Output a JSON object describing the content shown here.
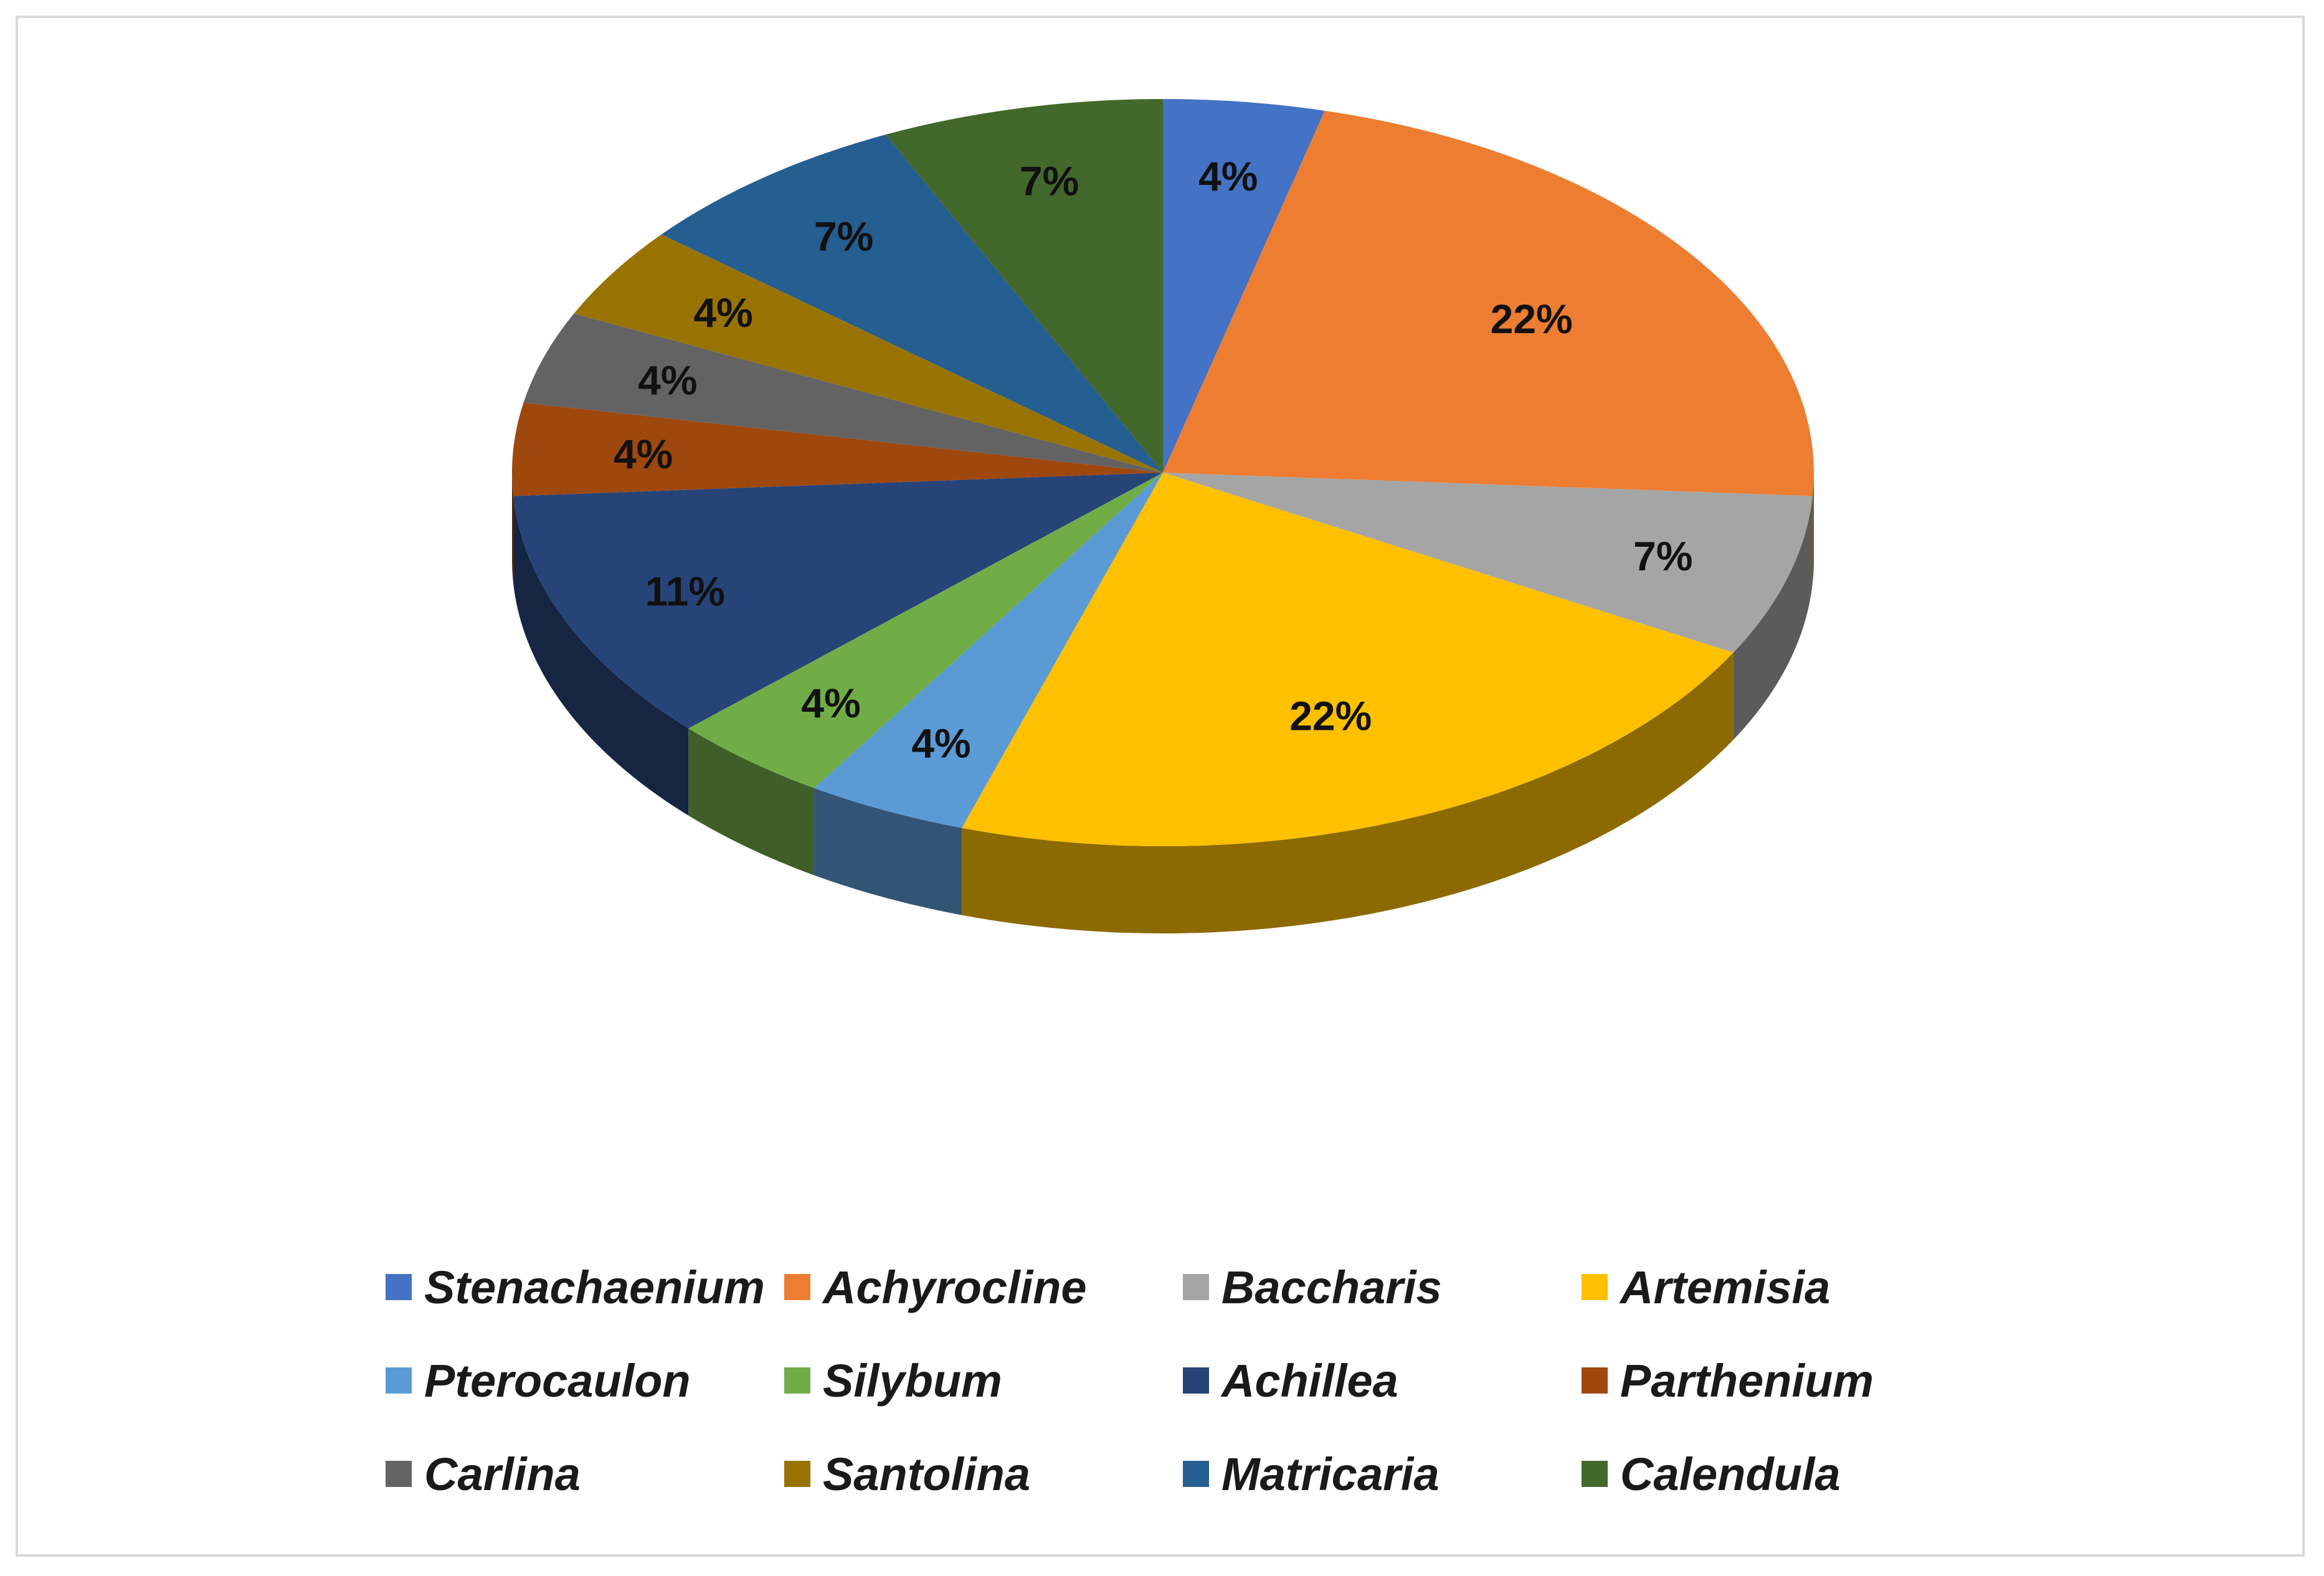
{
  "chart_data": {
    "type": "pie",
    "style": "3d",
    "start_angle": "12 o'clock",
    "direction": "clockwise",
    "title": "",
    "legend_position": "bottom",
    "slices": [
      {
        "label": "Stenachaenium",
        "value": 4,
        "display": "4%",
        "color": "#4472C4"
      },
      {
        "label": "Achyrocline",
        "value": 22,
        "display": "22%",
        "color": "#ED7D31"
      },
      {
        "label": "Baccharis",
        "value": 7,
        "display": "7%",
        "color": "#A5A5A5"
      },
      {
        "label": "Artemisia",
        "value": 22,
        "display": "22%",
        "color": "#FFC000"
      },
      {
        "label": "Pterocaulon",
        "value": 4,
        "display": "4%",
        "color": "#5B9BD5"
      },
      {
        "label": "Silybum",
        "value": 4,
        "display": "4%",
        "color": "#70AD47"
      },
      {
        "label": "Achillea",
        "value": 11,
        "display": "11%",
        "color": "#264478"
      },
      {
        "label": "Parthenium",
        "value": 4,
        "display": "4%",
        "color": "#9E480E"
      },
      {
        "label": "Carlina",
        "value": 4,
        "display": "4%",
        "color": "#636363"
      },
      {
        "label": "Santolina",
        "value": 4,
        "display": "4%",
        "color": "#997300"
      },
      {
        "label": "Matricaria",
        "value": 7,
        "display": "7%",
        "color": "#255E91"
      },
      {
        "label": "Calendula",
        "value": 7,
        "display": "7%",
        "color": "#43682B"
      }
    ]
  }
}
